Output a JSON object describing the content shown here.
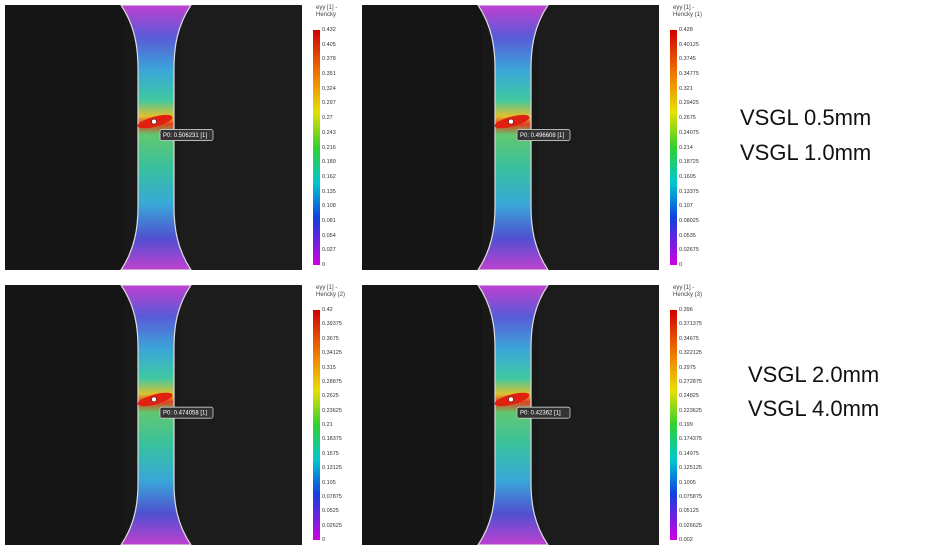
{
  "panels": [
    {
      "probe": "P0: 0.506231 [1]",
      "header": [
        "eyy [1] -",
        "Hencky"
      ],
      "ticks": [
        "0.432",
        "0.405",
        "0.378",
        "0.351",
        "0.324",
        "0.297",
        "0.27",
        "0.243",
        "0.216",
        "0.189",
        "0.162",
        "0.135",
        "0.108",
        "0.081",
        "0.054",
        "0.027",
        "0"
      ]
    },
    {
      "probe": "P0: 0.496608 [1]",
      "header": [
        "eyy [1] -",
        "Hencky (1)"
      ],
      "ticks": [
        "0.428",
        "0.40125",
        "0.3745",
        "0.34775",
        "0.321",
        "0.29425",
        "0.2675",
        "0.24075",
        "0.214",
        "0.18725",
        "0.1605",
        "0.13375",
        "0.107",
        "0.08025",
        "0.0535",
        "0.02675",
        "0"
      ]
    },
    {
      "probe": "P0: 0.474058 [1]",
      "header": [
        "eyy [1] -",
        "Hencky (2)"
      ],
      "ticks": [
        "0.42",
        "0.39375",
        "0.3675",
        "0.34125",
        "0.315",
        "0.28875",
        "0.2625",
        "0.23625",
        "0.21",
        "0.18375",
        "0.1575",
        "0.13125",
        "0.105",
        "0.07875",
        "0.0525",
        "0.02625",
        "0"
      ]
    },
    {
      "probe": "P0: 0.42362 [1]",
      "header": [
        "eyy [1] -",
        "Hencky (3)"
      ],
      "ticks": [
        "0.396",
        "0.371375",
        "0.34675",
        "0.322125",
        "0.2975",
        "0.272875",
        "0.24825",
        "0.223625",
        "0.199",
        "0.174375",
        "0.14975",
        "0.125125",
        "0.1005",
        "0.075875",
        "0.05125",
        "0.026625",
        "0.002"
      ]
    }
  ],
  "labels": {
    "top": [
      "VSGL 0.5mm",
      "VSGL 1.0mm"
    ],
    "bottom": [
      "VSGL 2.0mm",
      "VSGL 4.0mm"
    ]
  }
}
